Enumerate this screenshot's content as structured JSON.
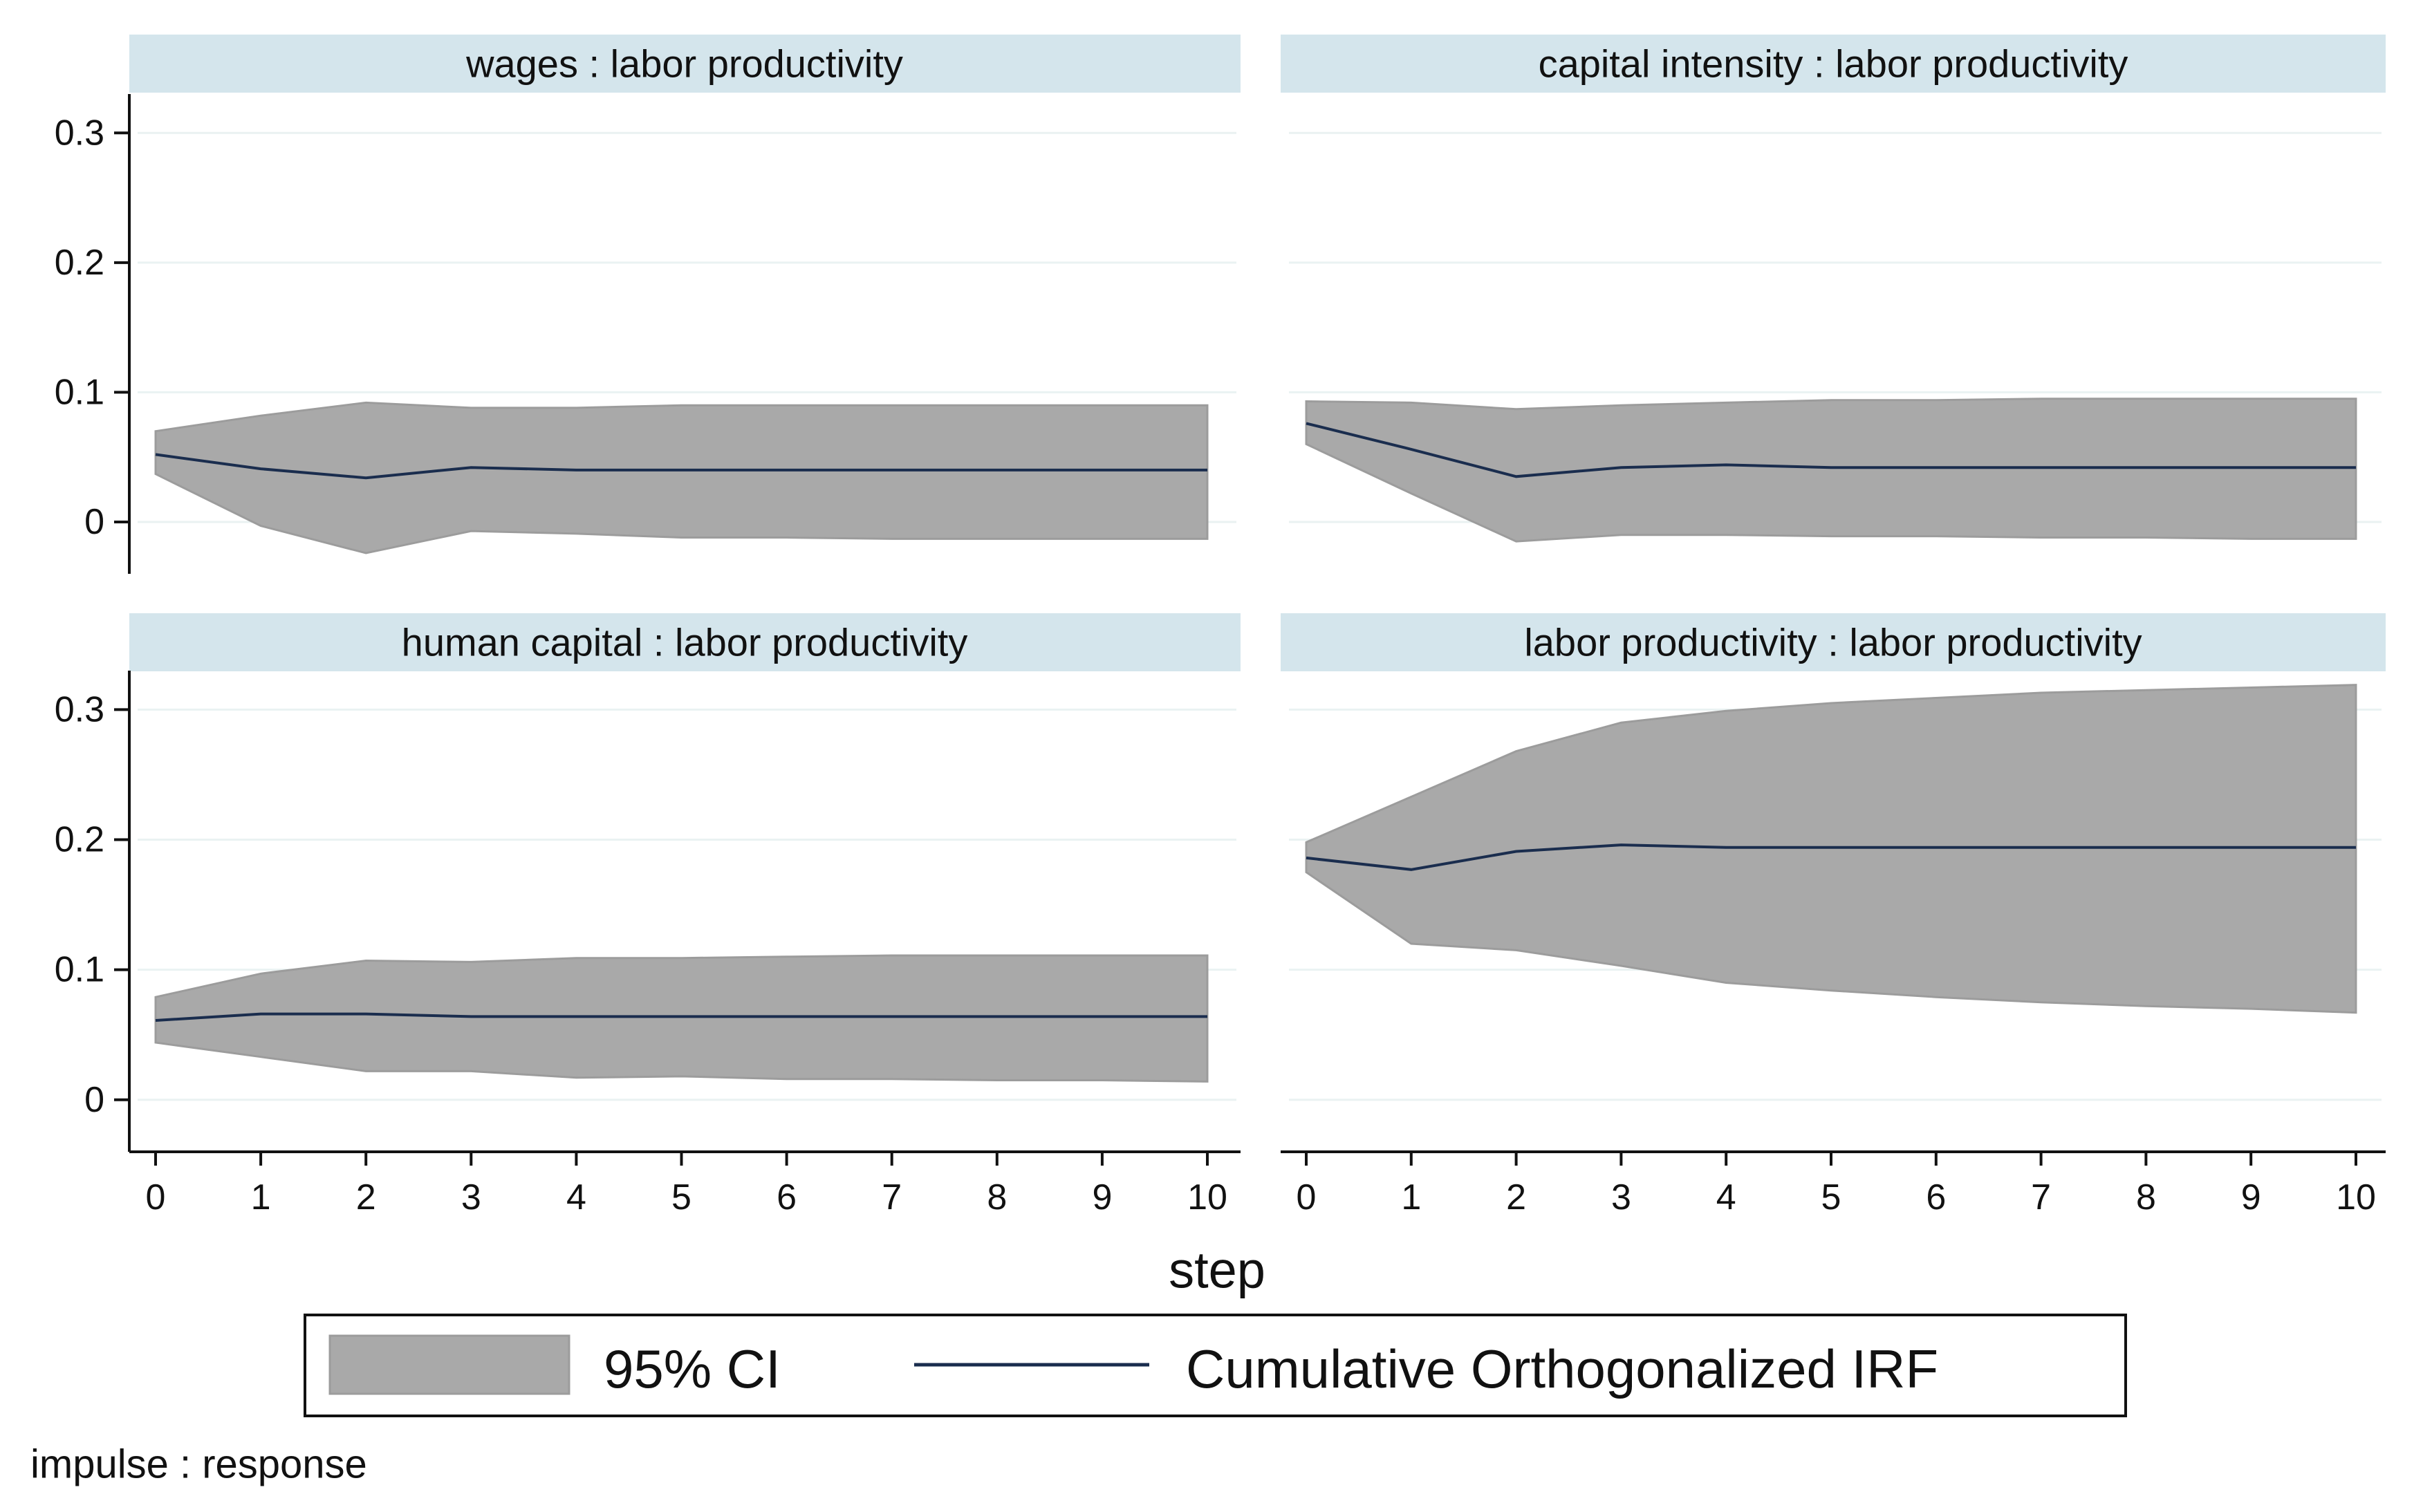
{
  "chart_data": {
    "type": "area",
    "x_title": "step",
    "note": "impulse : response",
    "legend": {
      "ci_label": "95% CI",
      "irf_label": "Cumulative Orthogonalized IRF"
    },
    "x_ticks": [
      "0",
      "1",
      "2",
      "3",
      "4",
      "5",
      "6",
      "7",
      "8",
      "9",
      "10"
    ],
    "y_ticks": [
      "0",
      "0.1",
      "0.2",
      "0.3"
    ],
    "xlim": [
      0,
      10
    ],
    "ylim": [
      -0.04,
      0.33
    ],
    "colors": {
      "band": "#a9a9a9",
      "band_edge": "#9c9c9c",
      "line": "#1a2d4e",
      "strip": "#d4e5ec",
      "grid": "#eaf2f2"
    },
    "panels": [
      {
        "title": "wages : labor productivity",
        "x": [
          0,
          1,
          2,
          3,
          4,
          5,
          6,
          7,
          8,
          9,
          10
        ],
        "irf": [
          0.052,
          0.041,
          0.034,
          0.042,
          0.04,
          0.04,
          0.04,
          0.04,
          0.04,
          0.04,
          0.04
        ],
        "lower": [
          0.037,
          -0.003,
          -0.024,
          -0.007,
          -0.009,
          -0.012,
          -0.012,
          -0.013,
          -0.013,
          -0.013,
          -0.013
        ],
        "upper": [
          0.07,
          0.082,
          0.092,
          0.088,
          0.088,
          0.09,
          0.09,
          0.09,
          0.09,
          0.09,
          0.09
        ]
      },
      {
        "title": "capital intensity : labor productivity",
        "x": [
          0,
          1,
          2,
          3,
          4,
          5,
          6,
          7,
          8,
          9,
          10
        ],
        "irf": [
          0.076,
          0.056,
          0.035,
          0.042,
          0.044,
          0.042,
          0.042,
          0.042,
          0.042,
          0.042,
          0.042
        ],
        "lower": [
          0.06,
          0.022,
          -0.015,
          -0.01,
          -0.01,
          -0.011,
          -0.011,
          -0.012,
          -0.012,
          -0.013,
          -0.013
        ],
        "upper": [
          0.093,
          0.092,
          0.087,
          0.09,
          0.092,
          0.094,
          0.094,
          0.095,
          0.095,
          0.095,
          0.095
        ]
      },
      {
        "title": "human capital : labor productivity",
        "x": [
          0,
          1,
          2,
          3,
          4,
          5,
          6,
          7,
          8,
          9,
          10
        ],
        "irf": [
          0.061,
          0.066,
          0.066,
          0.064,
          0.064,
          0.064,
          0.064,
          0.064,
          0.064,
          0.064,
          0.064
        ],
        "lower": [
          0.044,
          0.033,
          0.022,
          0.022,
          0.017,
          0.018,
          0.016,
          0.016,
          0.015,
          0.015,
          0.014
        ],
        "upper": [
          0.079,
          0.097,
          0.107,
          0.106,
          0.109,
          0.109,
          0.11,
          0.111,
          0.111,
          0.111,
          0.111
        ]
      },
      {
        "title": "labor productivity : labor productivity",
        "x": [
          0,
          1,
          2,
          3,
          4,
          5,
          6,
          7,
          8,
          9,
          10
        ],
        "irf": [
          0.186,
          0.177,
          0.191,
          0.196,
          0.194,
          0.194,
          0.194,
          0.194,
          0.194,
          0.194,
          0.194
        ],
        "lower": [
          0.175,
          0.12,
          0.115,
          0.103,
          0.09,
          0.084,
          0.079,
          0.075,
          0.072,
          0.07,
          0.067
        ],
        "upper": [
          0.198,
          0.233,
          0.268,
          0.29,
          0.299,
          0.305,
          0.309,
          0.313,
          0.315,
          0.317,
          0.319
        ]
      }
    ]
  }
}
